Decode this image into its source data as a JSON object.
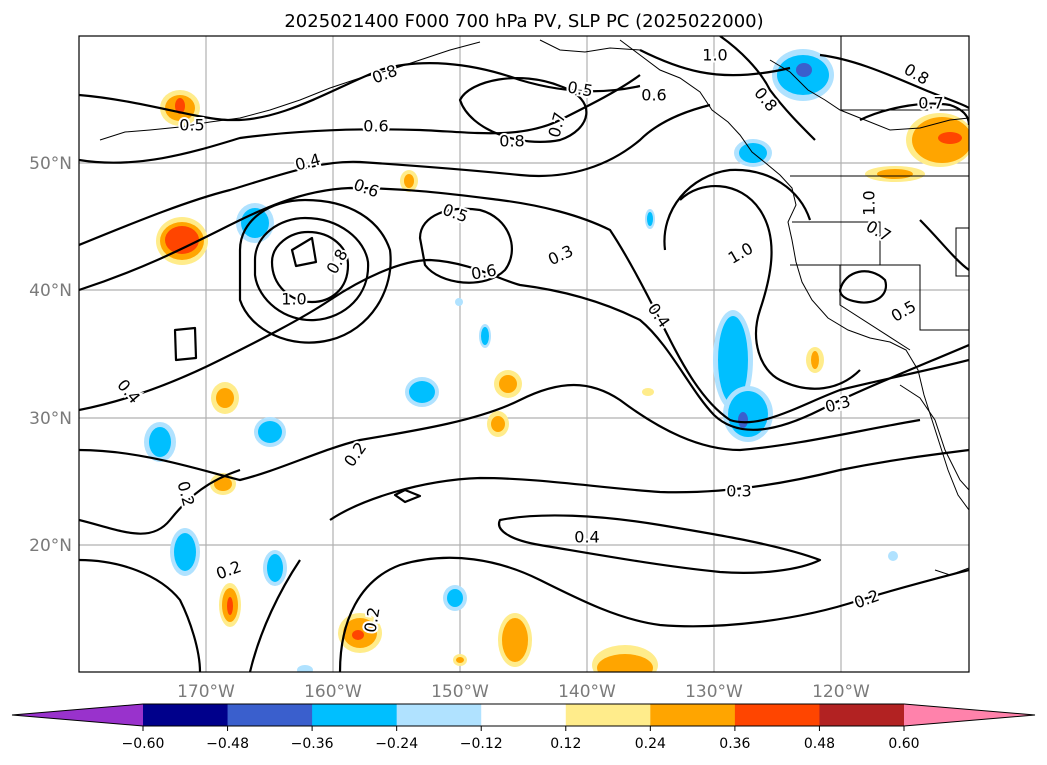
{
  "figure": {
    "title": "2025021400 F000 700 hPa PV, SLP PC (2025022000)"
  },
  "map": {
    "projection": "cylindrical",
    "lon_range": [
      -180,
      -110
    ],
    "lat_range": [
      10,
      60
    ],
    "lat_labels": [
      "50°N",
      "40°N",
      "30°N",
      "20°N"
    ],
    "lon_labels": [
      "170°W",
      "160°W",
      "150°W",
      "140°W",
      "130°W",
      "120°W"
    ],
    "contour_labels": [
      "0.5",
      "0.8",
      "0.6",
      "0.5",
      "0.8",
      "0.7",
      "1.0",
      "0.6",
      "0.8",
      "0.8",
      "0.7",
      "0.4",
      "0.6",
      "0.5",
      "0.8",
      "0.6",
      "0.3",
      "1.0",
      "1.0",
      "0.5",
      "0.7",
      "1.0",
      "0.4",
      "0.4",
      "0.3",
      "0.2",
      "0.2",
      "0.3",
      "0.4",
      "0.2",
      "0.2",
      "0.2"
    ]
  },
  "colorbar": {
    "ticks": [
      "−0.60",
      "−0.48",
      "−0.36",
      "−0.24",
      "−0.12",
      "0.12",
      "0.24",
      "0.36",
      "0.48",
      "0.60"
    ],
    "colors": [
      "#9932cc",
      "#00008b",
      "#3a5fcd",
      "#00bfff",
      "#b0e2ff",
      "#ffffff",
      "#ffec8b",
      "#ffa500",
      "#ff4500",
      "#b22222",
      "#ff82ab"
    ]
  }
}
